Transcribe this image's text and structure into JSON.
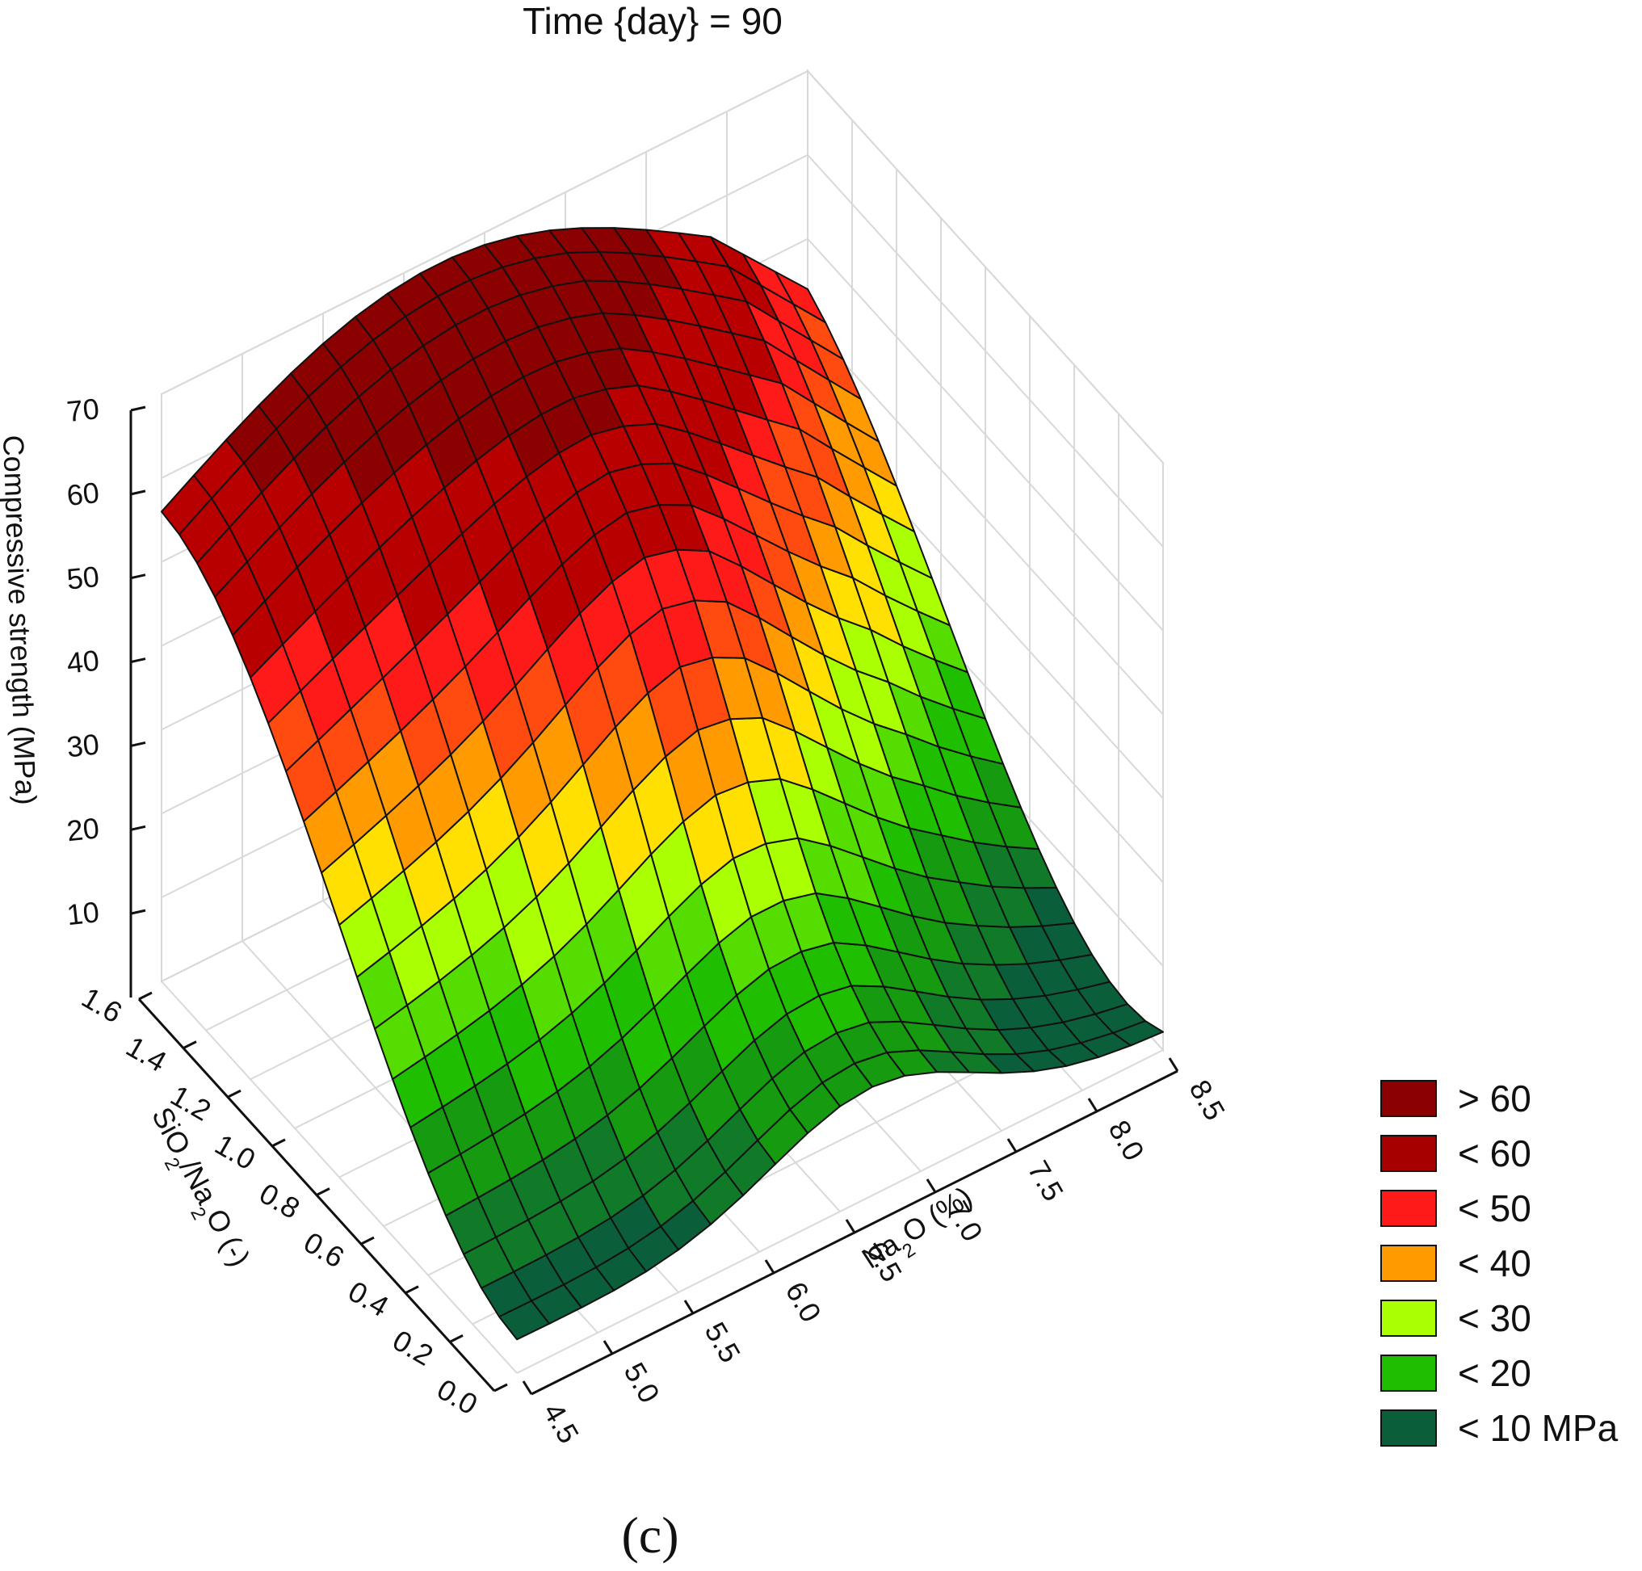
{
  "chart_data": {
    "type": "surface3d",
    "title": "Time {day} = 90",
    "panel_label": "(c)",
    "x_axis": {
      "label": "Na2O (%)",
      "ticks": [
        "4.5",
        "5.0",
        "5.5",
        "6.0",
        "6.5",
        "7.0",
        "7.5",
        "8.0",
        "8.5"
      ],
      "range": [
        4.5,
        8.5
      ]
    },
    "y_axis": {
      "label": "SiO2/Na2O (-)",
      "ticks": [
        "0.0",
        "0.2",
        "0.4",
        "0.6",
        "0.8",
        "1.0",
        "1.2",
        "1.4",
        "1.6"
      ],
      "range": [
        0.0,
        1.6
      ]
    },
    "z_axis": {
      "label": "Compressive strength (MPa)",
      "ticks": [
        "10",
        "20",
        "30",
        "40",
        "50",
        "60",
        "70"
      ],
      "range": [
        0,
        70
      ]
    },
    "surface_samples": [
      {
        "na2o": 4.5,
        "ratio": 1.6,
        "strength": 56
      },
      {
        "na2o": 6.5,
        "ratio": 1.6,
        "strength": 69
      },
      {
        "na2o": 8.5,
        "ratio": 1.6,
        "strength": 53
      },
      {
        "na2o": 4.5,
        "ratio": 0.8,
        "strength": 24
      },
      {
        "na2o": 6.5,
        "ratio": 0.8,
        "strength": 30
      },
      {
        "na2o": 8.5,
        "ratio": 0.8,
        "strength": 10
      },
      {
        "na2o": 4.5,
        "ratio": 0.0,
        "strength": 4
      },
      {
        "na2o": 6.5,
        "ratio": 0.0,
        "strength": 8
      },
      {
        "na2o": 8.5,
        "ratio": 0.0,
        "strength": 2
      }
    ],
    "legend": [
      {
        "label": "> 60",
        "color": "#8b0000"
      },
      {
        "label": "< 60",
        "color": "#a70000"
      },
      {
        "label": "< 50",
        "color": "#ff1a1a"
      },
      {
        "label": "< 40",
        "color": "#ff9a00"
      },
      {
        "label": "< 30",
        "color": "#aaff00"
      },
      {
        "label": "< 20",
        "color": "#1fbf00"
      },
      {
        "label": "< 10 MPa",
        "color": "#0b5e3a"
      }
    ],
    "grid": true,
    "legend_position": "bottom-right"
  }
}
